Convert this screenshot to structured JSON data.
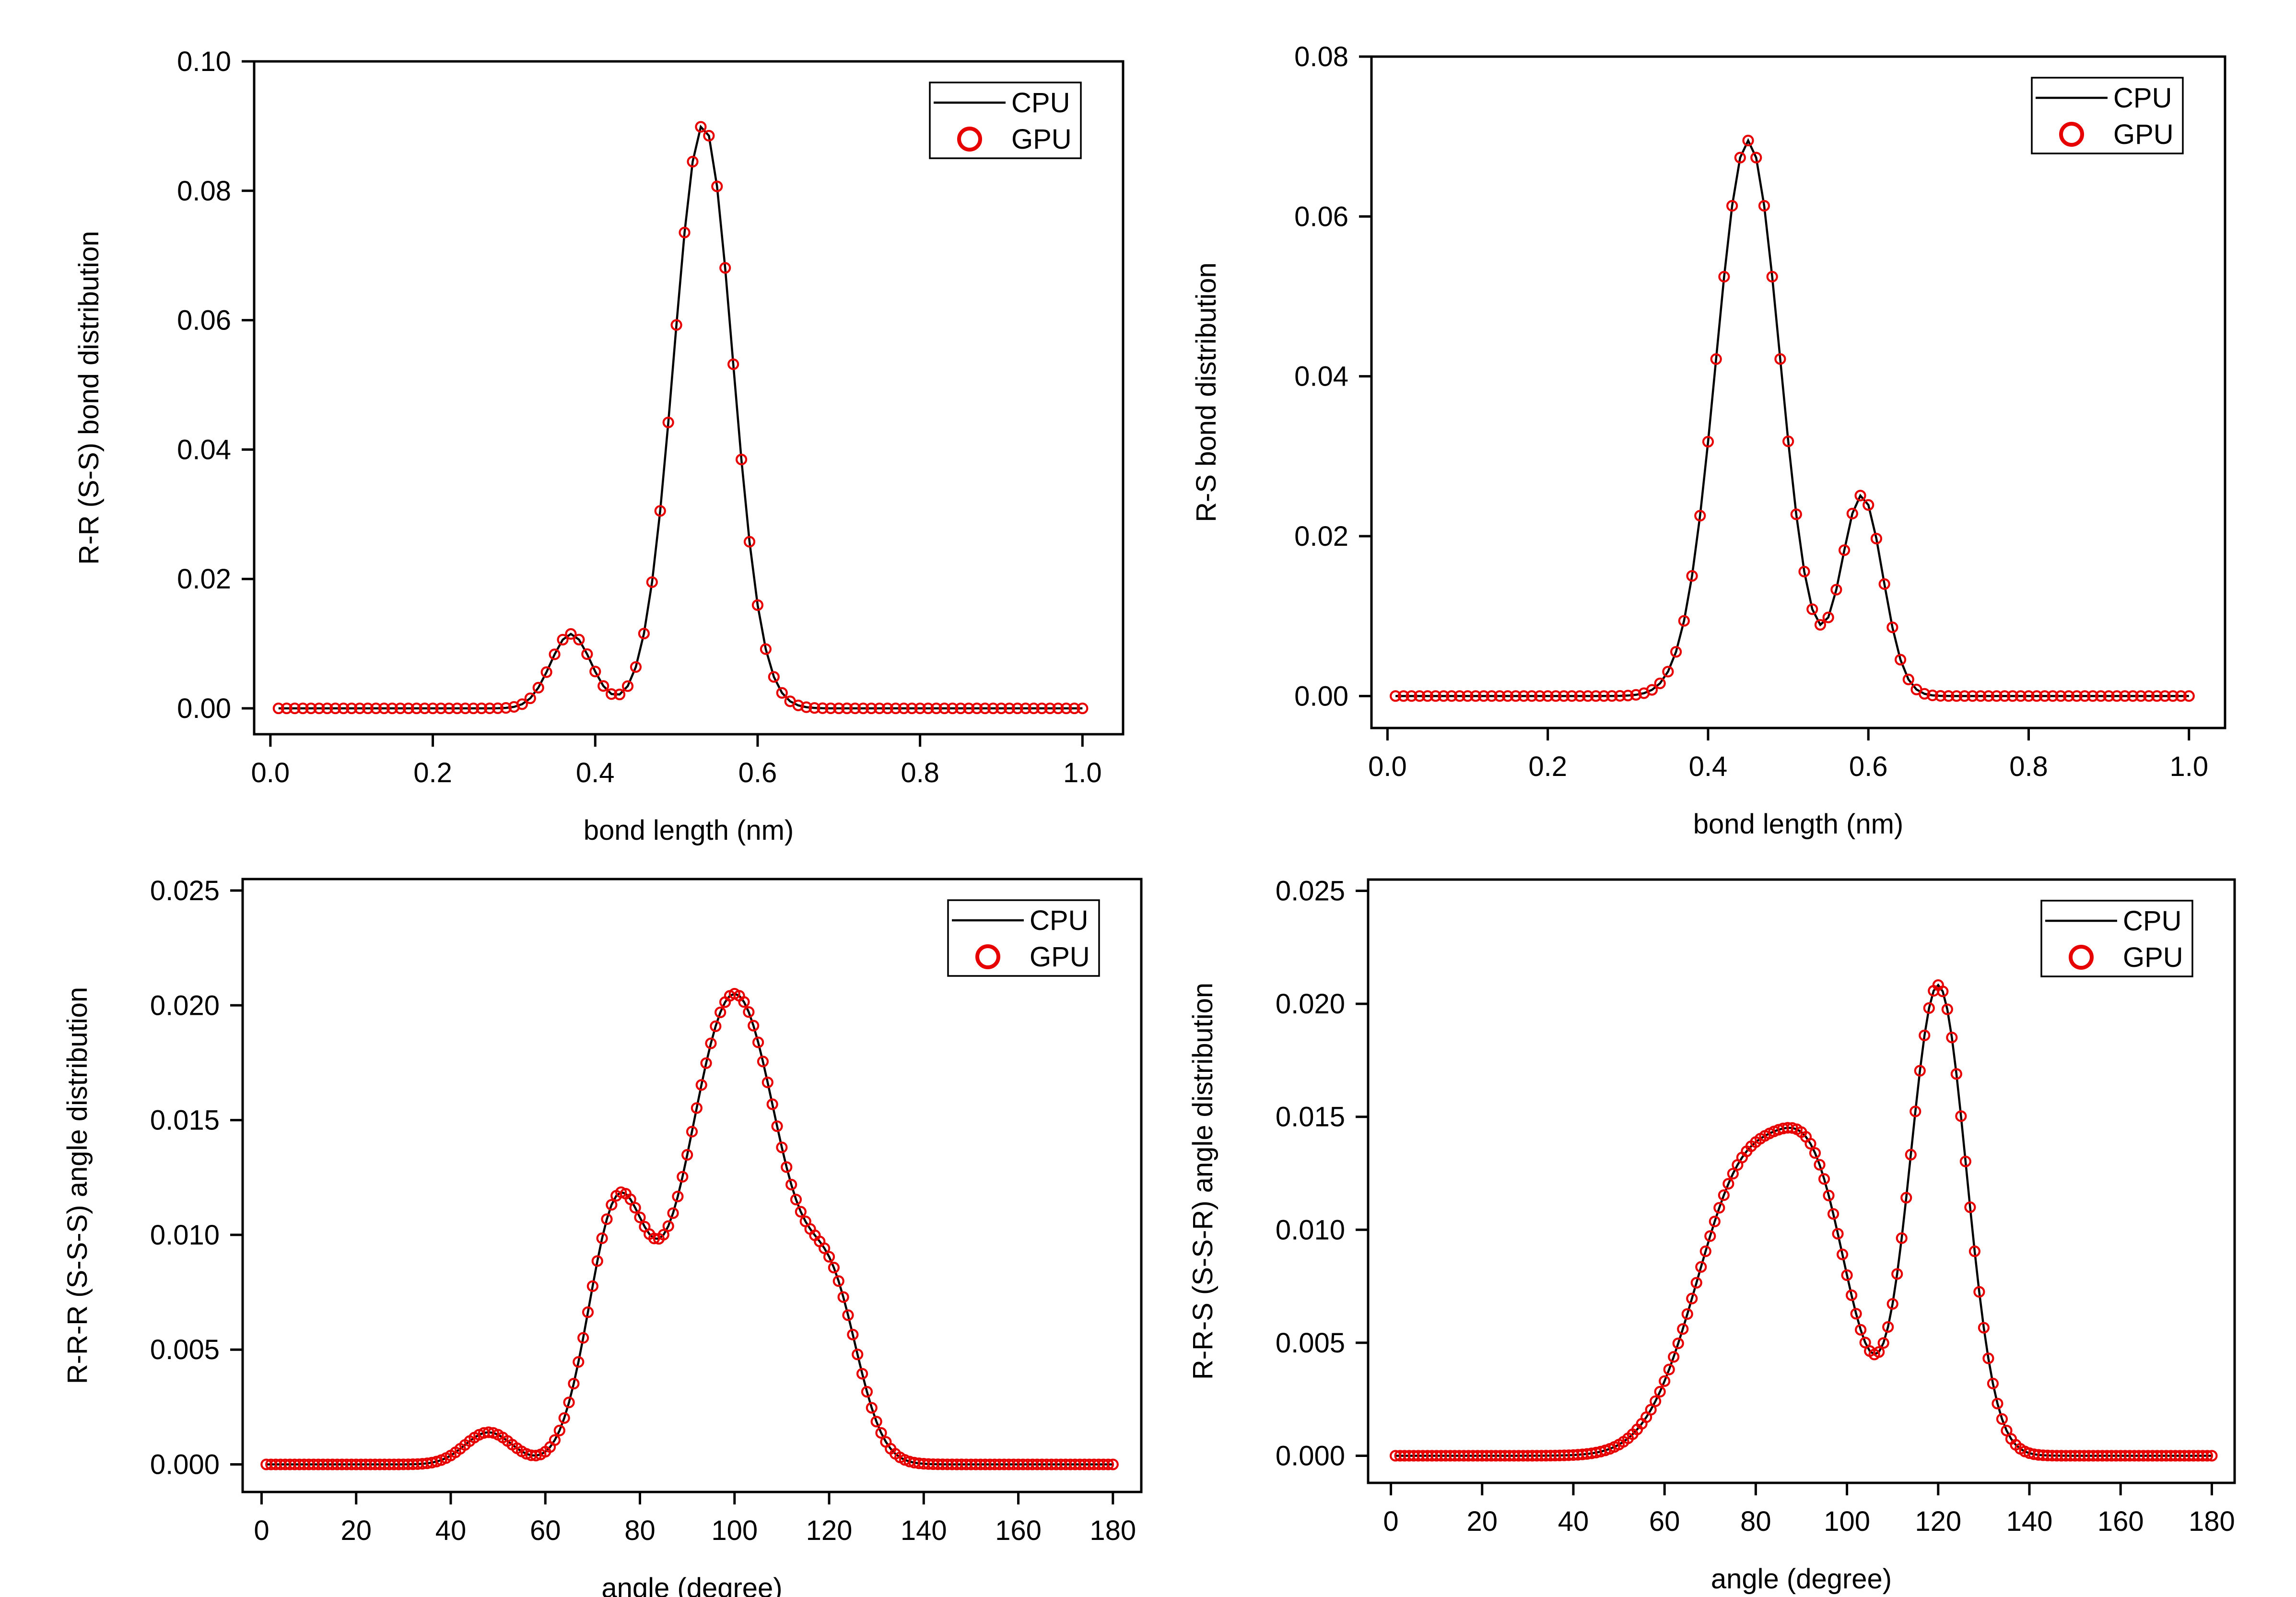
{
  "chart_data": [
    {
      "type": "line",
      "xlabel": "bond length (nm)",
      "ylabel": "R-R (S-S) bond distribution",
      "xlim": [
        -0.02,
        1.05
      ],
      "ylim": [
        -0.004,
        0.1
      ],
      "xticks": [
        0.0,
        0.2,
        0.4,
        0.6,
        0.8,
        1.0
      ],
      "xtick_labels": [
        "0.0",
        "0.2",
        "0.4",
        "0.6",
        "0.8",
        "1.0"
      ],
      "yticks": [
        0.0,
        0.02,
        0.04,
        0.06,
        0.08,
        0.1
      ],
      "ytick_labels": [
        "0.00",
        "0.02",
        "0.04",
        "0.06",
        "0.08",
        "0.10"
      ],
      "legend": {
        "position": "top-right",
        "entries": [
          "CPU",
          "GPU"
        ]
      },
      "x_range": [
        0.01,
        1.0
      ],
      "x_step": 0.01,
      "peaks": [
        {
          "center": 0.37,
          "height": 0.0115,
          "sigma": 0.025
        },
        {
          "center": 0.533,
          "height": 0.0902,
          "sigma": 0.036
        }
      ],
      "series": [
        {
          "name": "CPU",
          "style": "black line"
        },
        {
          "name": "GPU",
          "style": "red open circles"
        }
      ],
      "marker_step": 1
    },
    {
      "type": "line",
      "xlabel": "bond length (nm)",
      "ylabel": "R-S bond distribution",
      "xlim": [
        -0.02,
        1.045
      ],
      "ylim": [
        -0.004,
        0.08
      ],
      "xticks": [
        0.0,
        0.2,
        0.4,
        0.6,
        0.8,
        1.0
      ],
      "xtick_labels": [
        "0.0",
        "0.2",
        "0.4",
        "0.6",
        "0.8",
        "1.0"
      ],
      "yticks": [
        0.0,
        0.02,
        0.04,
        0.06,
        0.08
      ],
      "ytick_labels": [
        "0.00",
        "0.02",
        "0.04",
        "0.06",
        "0.08"
      ],
      "legend": {
        "position": "top-right",
        "entries": [
          "CPU",
          "GPU"
        ]
      },
      "x_range": [
        0.01,
        1.0
      ],
      "x_step": 0.01,
      "peaks": [
        {
          "center": 0.45,
          "height": 0.0695,
          "sigma": 0.04
        },
        {
          "center": 0.592,
          "height": 0.025,
          "sigma": 0.026
        }
      ],
      "series": [
        {
          "name": "CPU",
          "style": "black line"
        },
        {
          "name": "GPU",
          "style": "red open circles"
        }
      ],
      "marker_step": 1
    },
    {
      "type": "line",
      "xlabel": "angle (degree)",
      "ylabel": "R-R-R (S-S-S) angle distribution",
      "xlim": [
        -4,
        186
      ],
      "ylim": [
        -0.0012,
        0.0255
      ],
      "xticks": [
        0,
        20,
        40,
        60,
        80,
        100,
        120,
        140,
        160,
        180
      ],
      "xtick_labels": [
        "0",
        "20",
        "40",
        "60",
        "80",
        "100",
        "120",
        "140",
        "160",
        "180"
      ],
      "yticks": [
        0.0,
        0.005,
        0.01,
        0.015,
        0.02,
        0.025
      ],
      "ytick_labels": [
        "0.000",
        "0.005",
        "0.010",
        "0.015",
        "0.020",
        "0.025"
      ],
      "legend": {
        "position": "top-right",
        "entries": [
          "CPU",
          "GPU"
        ]
      },
      "x_range": [
        1,
        180
      ],
      "x_step": 1,
      "peaks": [
        {
          "center": 48,
          "height": 0.0014,
          "sigma": 5
        },
        {
          "center": 75,
          "height": 0.0105,
          "sigma": 6
        },
        {
          "center": 100,
          "height": 0.0205,
          "sigma": 10.5
        },
        {
          "center": 121,
          "height": 0.0058,
          "sigma": 5.5
        }
      ],
      "series": [
        {
          "name": "CPU",
          "style": "black line"
        },
        {
          "name": "GPU",
          "style": "red open circles"
        }
      ],
      "marker_step": 1
    },
    {
      "type": "line",
      "xlabel": "angle (degree)",
      "ylabel": "R-R-S (S-S-R) angle distribution",
      "xlim": [
        -5,
        185
      ],
      "ylim": [
        -0.0012,
        0.0255
      ],
      "xticks": [
        0,
        20,
        40,
        60,
        80,
        100,
        120,
        140,
        160,
        180
      ],
      "xtick_labels": [
        "0",
        "20",
        "40",
        "60",
        "80",
        "100",
        "120",
        "140",
        "160",
        "180"
      ],
      "yticks": [
        0.0,
        0.005,
        0.01,
        0.015,
        0.02,
        0.025
      ],
      "ytick_labels": [
        "0.000",
        "0.005",
        "0.010",
        "0.015",
        "0.020",
        "0.025"
      ],
      "legend": {
        "position": "top-right",
        "entries": [
          "CPU",
          "GPU"
        ]
      },
      "x_range": [
        1,
        180
      ],
      "x_step": 1,
      "peaks": [
        {
          "center": 78,
          "height": 0.0126,
          "sigma": 11
        },
        {
          "center": 94,
          "height": 0.0085,
          "sigma": 7.5
        },
        {
          "center": 120,
          "height": 0.0208,
          "sigma": 6.2
        }
      ],
      "series": [
        {
          "name": "CPU",
          "style": "black line"
        },
        {
          "name": "GPU",
          "style": "red open circles"
        }
      ],
      "marker_step": 1
    }
  ]
}
